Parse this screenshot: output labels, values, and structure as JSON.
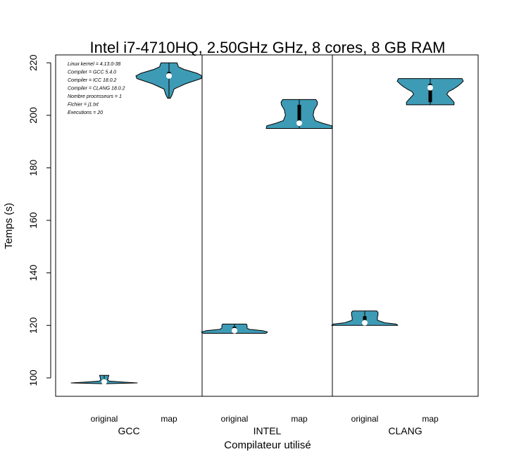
{
  "chart_data": {
    "type": "violin",
    "title": "Intel i7-4710HQ, 2.50GHz GHz, 8 cores, 8 GB RAM",
    "xlabel": "Compilateur utilisé",
    "ylabel": "Temps (s)",
    "ylim": [
      93,
      223
    ],
    "yticks": [
      100,
      120,
      140,
      160,
      180,
      200,
      220
    ],
    "grid": false,
    "fill_color": "#3e9bb5",
    "groups": [
      {
        "name": "GCC",
        "categories": [
          "original",
          "map"
        ],
        "violins": [
          {
            "category": "original",
            "min": 97.8,
            "max": 101.0,
            "q1": 98.0,
            "q3": 99.5,
            "median": 98.5,
            "profile": [
              [
                97.8,
                0.02
              ],
              [
                98.1,
                1.0
              ],
              [
                98.4,
                0.6
              ],
              [
                98.8,
                0.15
              ],
              [
                99.3,
                0.1
              ],
              [
                99.8,
                0.12
              ],
              [
                100.3,
                0.12
              ],
              [
                100.8,
                0.14
              ],
              [
                101.0,
                0.14
              ]
            ]
          },
          {
            "category": "map",
            "min": 206.5,
            "max": 220.0,
            "q1": 214.5,
            "q3": 216.5,
            "median": 215.0,
            "profile": [
              [
                206.5,
                0.04
              ],
              [
                208.0,
                0.1
              ],
              [
                210.0,
                0.15
              ],
              [
                212.0,
                0.5
              ],
              [
                214.0,
                0.97
              ],
              [
                215.0,
                1.0
              ],
              [
                216.0,
                0.85
              ],
              [
                217.5,
                0.45
              ],
              [
                218.5,
                0.28
              ],
              [
                219.5,
                0.26
              ],
              [
                220.0,
                0.24
              ]
            ]
          }
        ]
      },
      {
        "name": "INTEL",
        "categories": [
          "original",
          "map"
        ],
        "violins": [
          {
            "category": "original",
            "min": 117.0,
            "max": 120.5,
            "q1": 117.5,
            "q3": 119.5,
            "median": 118.0,
            "profile": [
              [
                117.0,
                0.95
              ],
              [
                117.5,
                1.0
              ],
              [
                118.0,
                0.85
              ],
              [
                118.5,
                0.45
              ],
              [
                119.0,
                0.38
              ],
              [
                120.0,
                0.38
              ],
              [
                120.5,
                0.36
              ]
            ]
          },
          {
            "category": "map",
            "min": 195.0,
            "max": 206.0,
            "q1": 196.0,
            "q3": 204.0,
            "median": 197.0,
            "profile": [
              [
                195.0,
                1.0
              ],
              [
                196.0,
                0.98
              ],
              [
                197.0,
                0.7
              ],
              [
                198.0,
                0.48
              ],
              [
                200.0,
                0.42
              ],
              [
                202.0,
                0.45
              ],
              [
                204.0,
                0.54
              ],
              [
                205.0,
                0.55
              ],
              [
                206.0,
                0.5
              ]
            ]
          }
        ]
      },
      {
        "name": "CLANG",
        "categories": [
          "original",
          "map"
        ],
        "violins": [
          {
            "category": "original",
            "min": 120.0,
            "max": 125.5,
            "q1": 120.5,
            "q3": 123.5,
            "median": 121.0,
            "profile": [
              [
                120.0,
                1.0
              ],
              [
                120.5,
                0.95
              ],
              [
                121.0,
                0.6
              ],
              [
                122.0,
                0.38
              ],
              [
                123.0,
                0.38
              ],
              [
                124.0,
                0.4
              ],
              [
                125.0,
                0.4
              ],
              [
                125.5,
                0.36
              ]
            ]
          },
          {
            "category": "map",
            "min": 204.0,
            "max": 214.0,
            "q1": 205.0,
            "q3": 212.0,
            "median": 210.5,
            "profile": [
              [
                204.0,
                0.72
              ],
              [
                205.0,
                0.72
              ],
              [
                206.0,
                0.65
              ],
              [
                208.0,
                0.5
              ],
              [
                209.0,
                0.55
              ],
              [
                210.0,
                0.7
              ],
              [
                211.0,
                0.82
              ],
              [
                212.0,
                0.92
              ],
              [
                213.0,
                1.0
              ],
              [
                214.0,
                0.96
              ]
            ]
          }
        ]
      }
    ],
    "annotations": [
      "Linux kernel = 4.13.0-38",
      "Compiler = GCC 5.4.0",
      "Compiler = ICC 18.0.2",
      "Compiler = CLANG 18.0.2",
      "Nombre processeurs = 1",
      "Fichier = j1.txt",
      "Executions = 20"
    ]
  }
}
